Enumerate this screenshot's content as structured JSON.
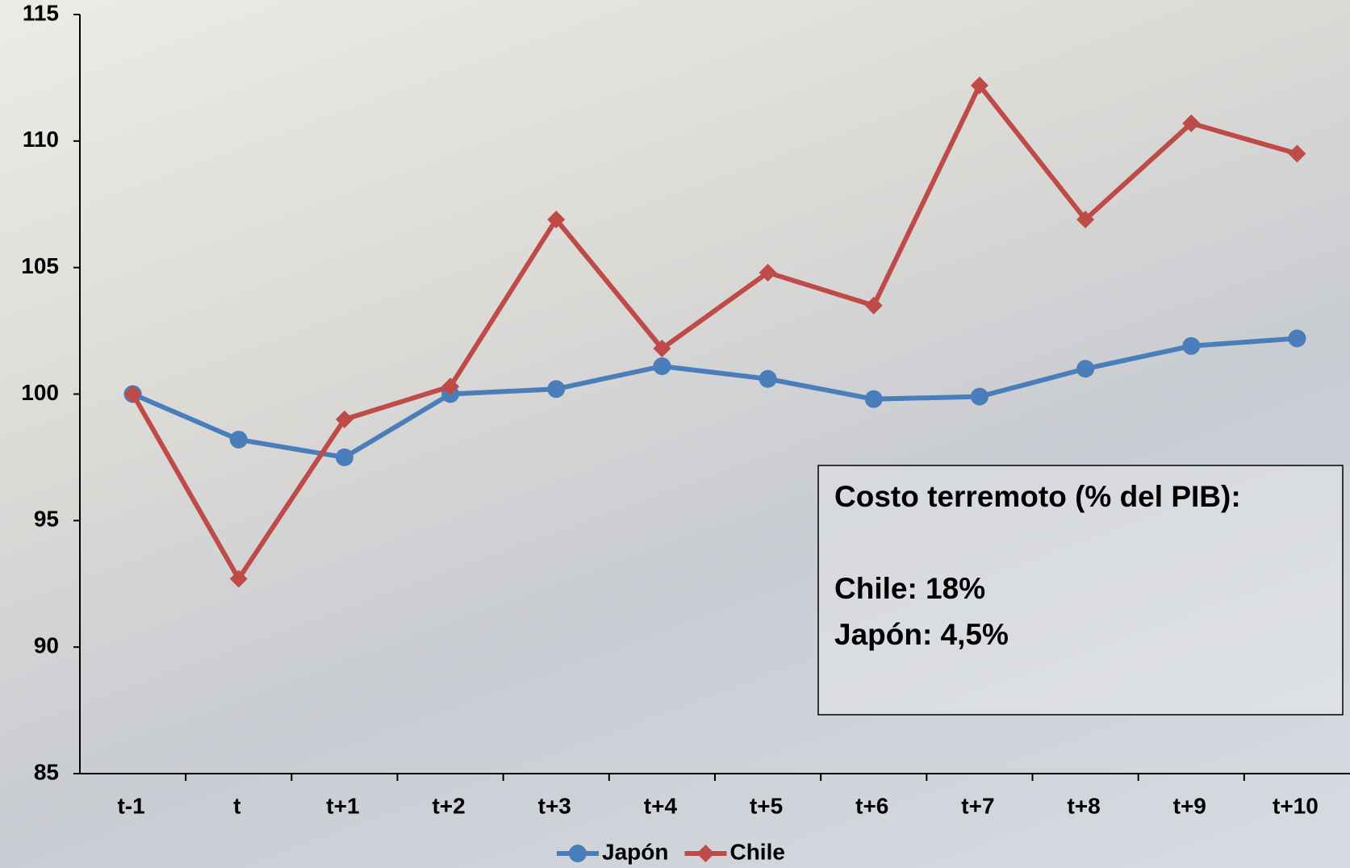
{
  "chart_data": {
    "type": "line",
    "categories": [
      "t-1",
      "t",
      "t+1",
      "t+2",
      "t+3",
      "t+4",
      "t+5",
      "t+6",
      "t+7",
      "t+8",
      "t+9",
      "t+10"
    ],
    "series": [
      {
        "name": "Japón",
        "color": "#4a7ebb",
        "marker": "circle",
        "values": [
          100,
          98.2,
          97.5,
          100,
          100.2,
          101.1,
          100.6,
          99.8,
          99.9,
          101.0,
          101.9,
          102.2
        ]
      },
      {
        "name": "Chile",
        "color": "#be4b48",
        "marker": "diamond",
        "values": [
          100,
          92.7,
          99.0,
          100.3,
          106.9,
          101.8,
          104.8,
          103.5,
          112.2,
          106.9,
          110.7,
          109.5
        ]
      }
    ],
    "ylim": [
      85,
      115
    ],
    "yticks": [
      85,
      90,
      95,
      100,
      105,
      110,
      115
    ],
    "grid": false,
    "legend": "bottom",
    "annotations": [
      "Costo terremoto (% del PIB):",
      "Chile: 18%",
      "Japón: 4,5%"
    ]
  }
}
